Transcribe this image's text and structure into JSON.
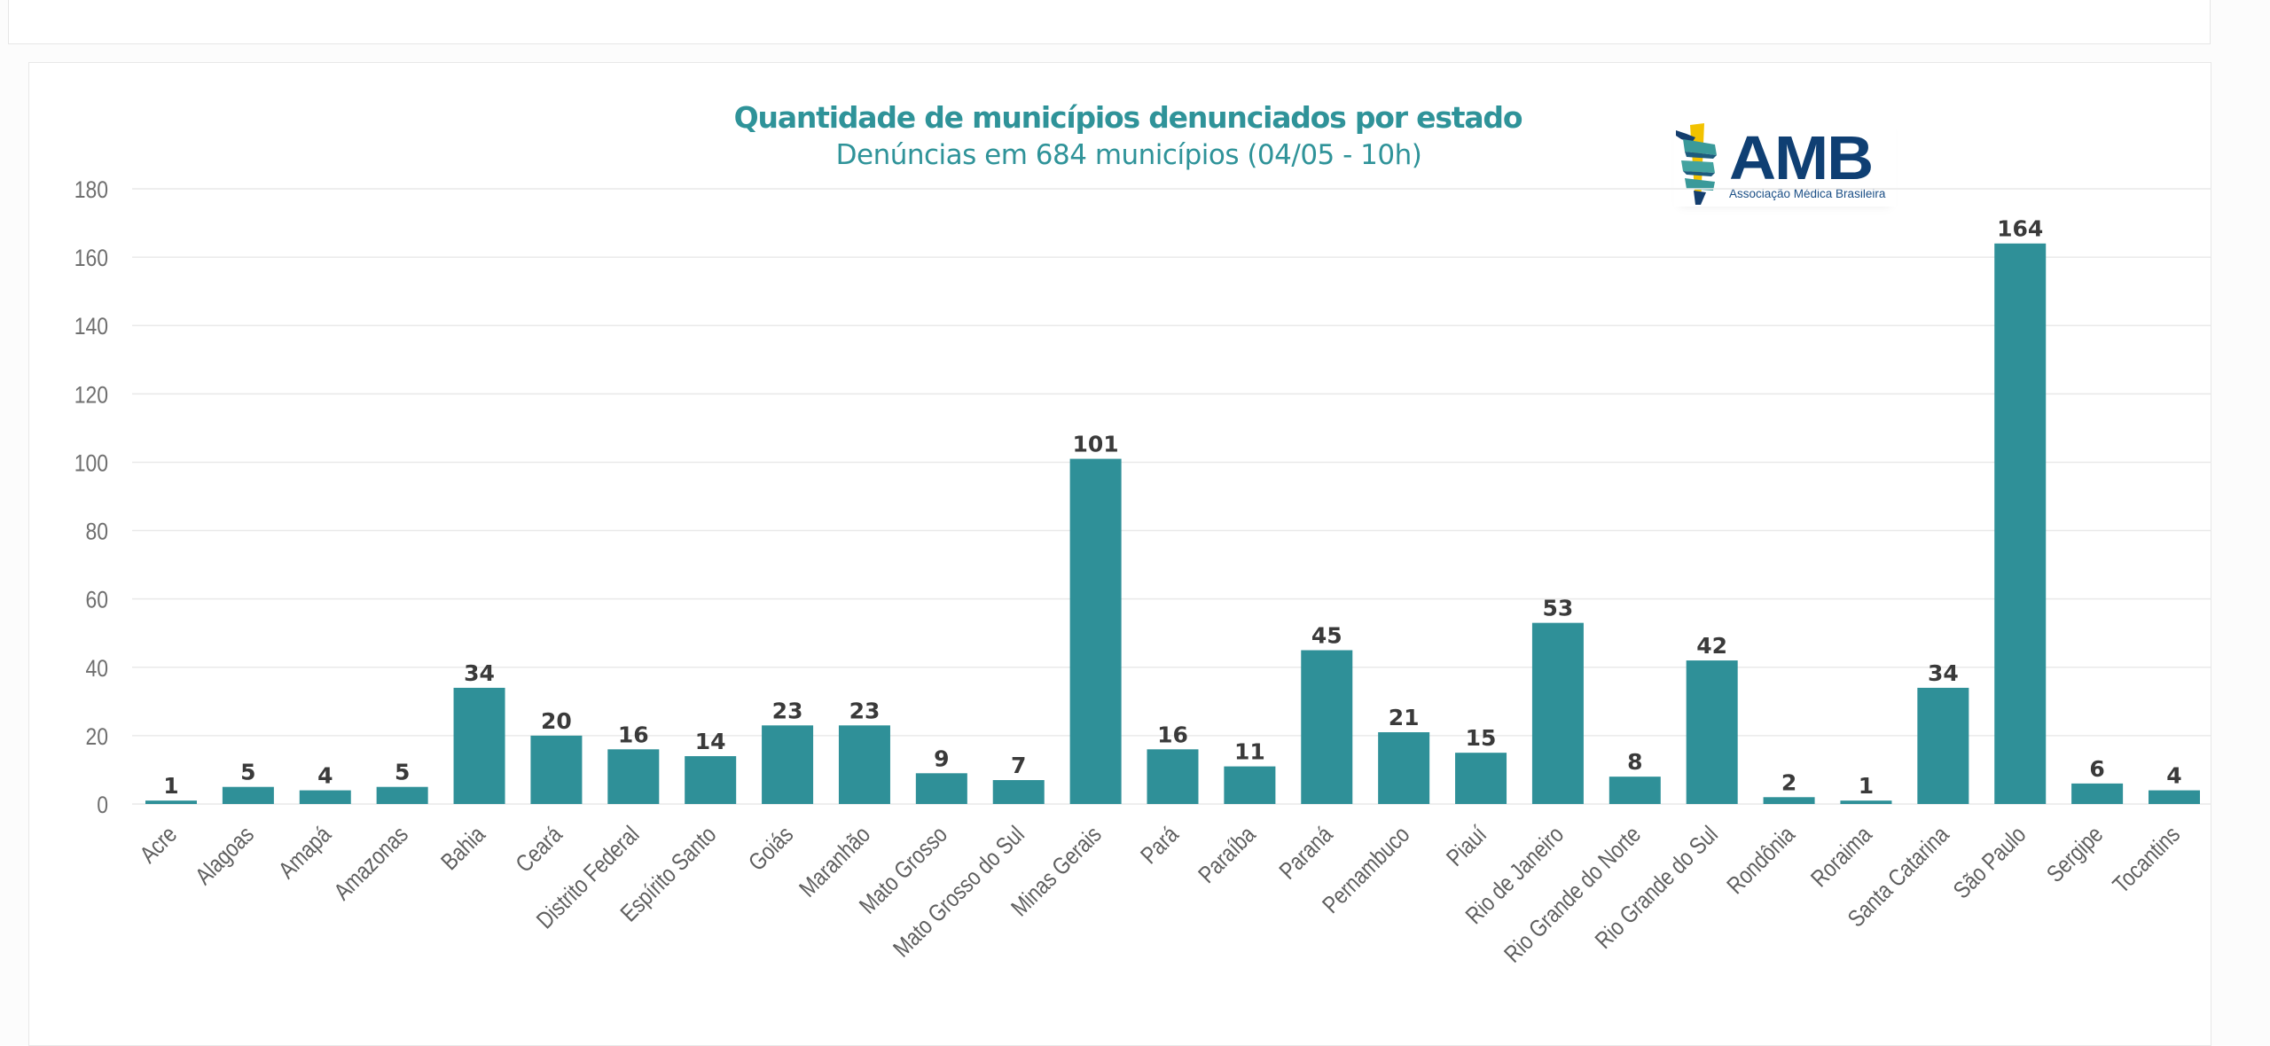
{
  "header": {},
  "chart_data": {
    "type": "bar",
    "title": "Quantidade de municípios denunciados por estado",
    "subtitle": "Denúncias em 684 municípios (04/05 - 10h)",
    "xlabel": "",
    "ylabel": "",
    "ylim": [
      0,
      180
    ],
    "yticks": [
      0,
      20,
      40,
      60,
      80,
      100,
      120,
      140,
      160,
      180
    ],
    "grid": true,
    "legend": "none",
    "bar_color": "#2f9098",
    "label_color": "#3a3a3a",
    "categories": [
      "Acre",
      "Alagoas",
      "Amapá",
      "Amazonas",
      "Bahia",
      "Ceará",
      "Distrito Federal",
      "Espírito Santo",
      "Goiás",
      "Maranhão",
      "Mato Grosso",
      "Mato Grosso do Sul",
      "Minas Gerais",
      "Pará",
      "Paraíba",
      "Paraná",
      "Pernambuco",
      "Piauí",
      "Rio de Janeiro",
      "Rio Grande do Norte",
      "Rio Grande do Sul",
      "Rondônia",
      "Roraima",
      "Santa Catarina",
      "São Paulo",
      "Sergipe",
      "Tocantins"
    ],
    "values": [
      1,
      5,
      4,
      5,
      34,
      20,
      16,
      14,
      23,
      23,
      9,
      7,
      101,
      16,
      11,
      45,
      21,
      15,
      53,
      8,
      42,
      2,
      1,
      34,
      164,
      6,
      4
    ]
  },
  "logo": {
    "name": "AMB",
    "tagline": "Associação Médica Brasileira",
    "colors": {
      "navy": "#0f3f73",
      "yellow": "#f2c200",
      "teal": "#3a9a9a"
    }
  }
}
